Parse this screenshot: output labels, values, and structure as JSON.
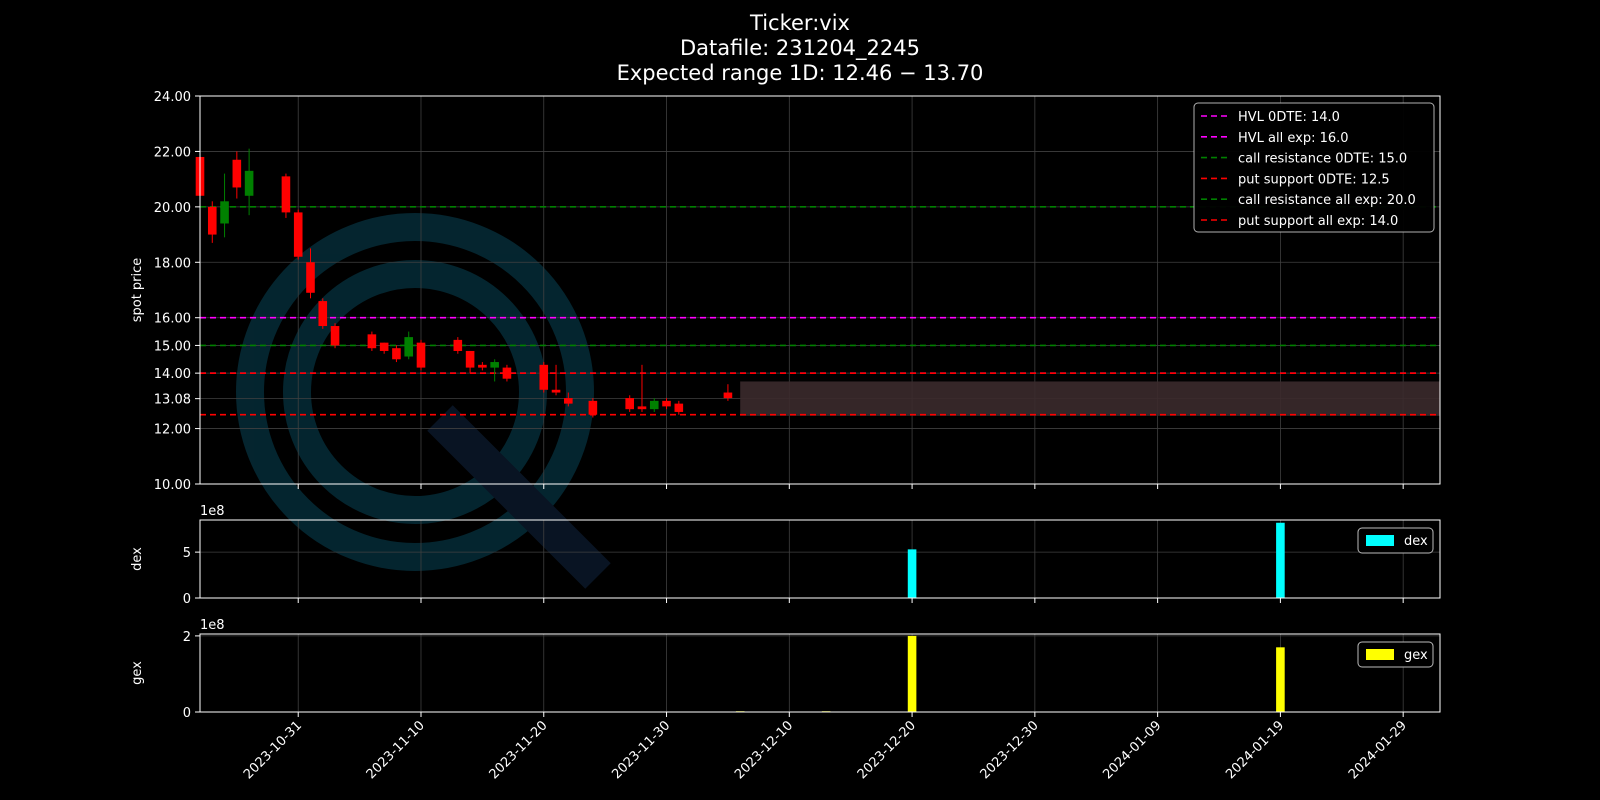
{
  "title": {
    "ticker": "Ticker:vix",
    "datafile": "Datafile: 231204_2245",
    "expected_range": "Expected range 1D: 12.46 − 13.70"
  },
  "colors": {
    "background": "#000000",
    "axes": "#ffffff",
    "grid": "#404040",
    "up": "#008000",
    "down": "#ff0000",
    "magenta": "#ff00ff",
    "green": "#008000",
    "red": "#ff0000",
    "dex": "#00ffff",
    "gex": "#ffff00",
    "range_box": "#3b2a2c"
  },
  "chart_data": [
    {
      "type": "candlestick",
      "name": "price",
      "ylabel": "spot price",
      "ylim": [
        10,
        24
      ],
      "yticks": [
        "10.00",
        "12.00",
        "13.08",
        "14.00",
        "15.00",
        "16.00",
        "18.00",
        "20.00",
        "22.00",
        "24.00"
      ],
      "ytick_values": [
        10,
        12,
        13.08,
        14,
        15,
        16,
        18,
        20,
        22,
        24
      ],
      "xlim": [
        "2023-10-23",
        "2024-02-01"
      ],
      "candles": [
        {
          "date": "2023-10-23",
          "open": 21.8,
          "high": 21.9,
          "low": 20.3,
          "close": 20.4
        },
        {
          "date": "2023-10-24",
          "open": 20.0,
          "high": 20.2,
          "low": 18.7,
          "close": 19.0
        },
        {
          "date": "2023-10-25",
          "open": 19.4,
          "high": 21.2,
          "low": 18.9,
          "close": 20.2
        },
        {
          "date": "2023-10-26",
          "open": 21.7,
          "high": 22.0,
          "low": 20.3,
          "close": 20.7
        },
        {
          "date": "2023-10-27",
          "open": 20.4,
          "high": 22.1,
          "low": 19.7,
          "close": 21.3
        },
        {
          "date": "2023-10-30",
          "open": 21.1,
          "high": 21.2,
          "low": 19.6,
          "close": 19.8
        },
        {
          "date": "2023-10-31",
          "open": 19.8,
          "high": 19.9,
          "low": 18.1,
          "close": 18.2
        },
        {
          "date": "2023-11-01",
          "open": 18.0,
          "high": 18.5,
          "low": 16.7,
          "close": 16.9
        },
        {
          "date": "2023-11-02",
          "open": 16.6,
          "high": 16.7,
          "low": 15.6,
          "close": 15.7
        },
        {
          "date": "2023-11-03",
          "open": 15.7,
          "high": 15.8,
          "low": 14.9,
          "close": 15.0
        },
        {
          "date": "2023-11-06",
          "open": 15.4,
          "high": 15.5,
          "low": 14.8,
          "close": 14.9
        },
        {
          "date": "2023-11-07",
          "open": 15.1,
          "high": 15.1,
          "low": 14.7,
          "close": 14.8
        },
        {
          "date": "2023-11-08",
          "open": 14.9,
          "high": 15.0,
          "low": 14.4,
          "close": 14.5
        },
        {
          "date": "2023-11-09",
          "open": 14.6,
          "high": 15.5,
          "low": 14.5,
          "close": 15.3
        },
        {
          "date": "2023-11-10",
          "open": 15.1,
          "high": 15.2,
          "low": 14.1,
          "close": 14.2
        },
        {
          "date": "2023-11-13",
          "open": 15.2,
          "high": 15.3,
          "low": 14.7,
          "close": 14.8
        },
        {
          "date": "2023-11-14",
          "open": 14.8,
          "high": 14.8,
          "low": 14.0,
          "close": 14.2
        },
        {
          "date": "2023-11-15",
          "open": 14.3,
          "high": 14.4,
          "low": 14.1,
          "close": 14.2
        },
        {
          "date": "2023-11-16",
          "open": 14.2,
          "high": 14.5,
          "low": 13.7,
          "close": 14.4
        },
        {
          "date": "2023-11-17",
          "open": 14.2,
          "high": 14.3,
          "low": 13.7,
          "close": 13.8
        },
        {
          "date": "2023-11-20",
          "open": 14.3,
          "high": 14.4,
          "low": 13.3,
          "close": 13.4
        },
        {
          "date": "2023-11-21",
          "open": 13.4,
          "high": 14.3,
          "low": 13.2,
          "close": 13.3
        },
        {
          "date": "2023-11-22",
          "open": 13.1,
          "high": 13.3,
          "low": 12.8,
          "close": 12.9
        },
        {
          "date": "2023-11-24",
          "open": 13.0,
          "high": 13.1,
          "low": 12.4,
          "close": 12.5
        },
        {
          "date": "2023-11-27",
          "open": 13.1,
          "high": 13.2,
          "low": 12.6,
          "close": 12.7
        },
        {
          "date": "2023-11-28",
          "open": 12.8,
          "high": 14.3,
          "low": 12.6,
          "close": 12.7
        },
        {
          "date": "2023-11-29",
          "open": 12.7,
          "high": 13.1,
          "low": 12.6,
          "close": 13.0
        },
        {
          "date": "2023-11-30",
          "open": 13.0,
          "high": 13.1,
          "low": 12.7,
          "close": 12.8
        },
        {
          "date": "2023-12-01",
          "open": 12.9,
          "high": 13.0,
          "low": 12.5,
          "close": 12.6
        },
        {
          "date": "2023-12-05",
          "open": 13.3,
          "high": 13.6,
          "low": 13.0,
          "close": 13.1
        }
      ],
      "expected_range_box": {
        "start": "2023-12-06",
        "end": "2024-02-01",
        "low": 12.46,
        "high": 13.7
      },
      "hlines": [
        {
          "label": "HVL 0DTE: 14.0",
          "value": 14.0,
          "color": "#ff00ff"
        },
        {
          "label": "HVL all exp: 16.0",
          "value": 16.0,
          "color": "#ff00ff"
        },
        {
          "label": "call resistance 0DTE: 15.0",
          "value": 15.0,
          "color": "#008000"
        },
        {
          "label": "put support 0DTE: 12.5",
          "value": 12.5,
          "color": "#ff0000"
        },
        {
          "label": "call resistance all exp: 20.0",
          "value": 20.0,
          "color": "#008000"
        },
        {
          "label": "put support all exp: 14.0",
          "value": 14.0,
          "color": "#ff0000"
        }
      ],
      "legend_position": "top-right"
    },
    {
      "type": "bar",
      "name": "dex",
      "ylabel": "dex",
      "legend": "dex",
      "scale_label": "1e8",
      "ylim": [
        0,
        8.5
      ],
      "yticks": [
        "0",
        "5"
      ],
      "ytick_values": [
        0,
        5
      ],
      "bars": [
        {
          "date": "2023-12-15",
          "value": 0.0
        },
        {
          "date": "2023-12-20",
          "value": 5.3
        },
        {
          "date": "2024-01-19",
          "value": 8.2
        }
      ],
      "legend_position": "top-right"
    },
    {
      "type": "bar",
      "name": "gex",
      "ylabel": "gex",
      "legend": "gex",
      "scale_label": "1e8",
      "ylim": [
        0,
        2.05
      ],
      "yticks": [
        "0",
        "2"
      ],
      "ytick_values": [
        0,
        2
      ],
      "bars": [
        {
          "date": "2023-12-06",
          "value": 0.02
        },
        {
          "date": "2023-12-13",
          "value": 0.02
        },
        {
          "date": "2023-12-20",
          "value": 2.0
        },
        {
          "date": "2024-01-19",
          "value": 1.7
        }
      ],
      "legend_position": "top-right"
    }
  ],
  "x_axis": {
    "ticks": [
      "2023-10-31",
      "2023-11-10",
      "2023-11-20",
      "2023-11-30",
      "2023-12-10",
      "2023-12-20",
      "2023-12-30",
      "2024-01-09",
      "2024-01-19",
      "2024-01-29"
    ]
  }
}
